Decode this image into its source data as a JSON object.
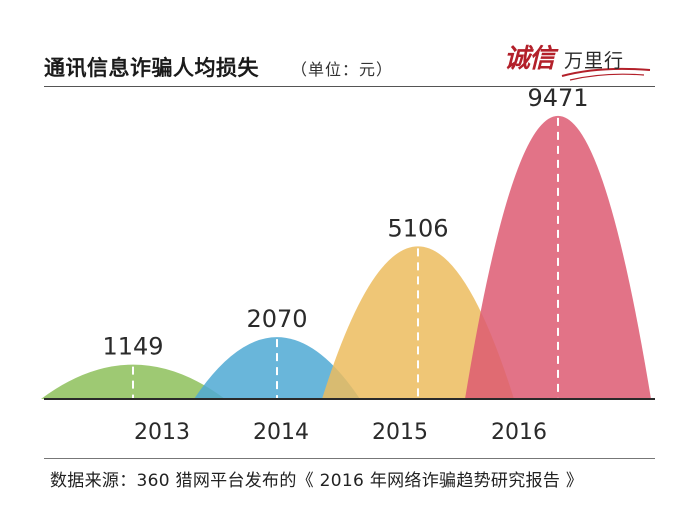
{
  "title": "通讯信息诈骗人均损失",
  "unit": "（单位：元）",
  "brand": {
    "red_text": "诚信",
    "dark_text": "万里行",
    "red_color": "#b3202a"
  },
  "source": "数据来源：360 猎网平台发布的《 2016 年网络诈骗趋势研究报告 》",
  "chart_data": {
    "type": "area",
    "title": "通讯信息诈骗人均损失",
    "unit": "元",
    "categories": [
      "2013",
      "2014",
      "2015",
      "2016"
    ],
    "values": [
      1149,
      2070,
      5106,
      9471
    ],
    "colors": [
      "#8dc05a",
      "#4fa9d3",
      "#ecbc5e",
      "#dd5a72"
    ],
    "ylim": [
      0,
      10000
    ],
    "grid": false,
    "legend": "none"
  }
}
